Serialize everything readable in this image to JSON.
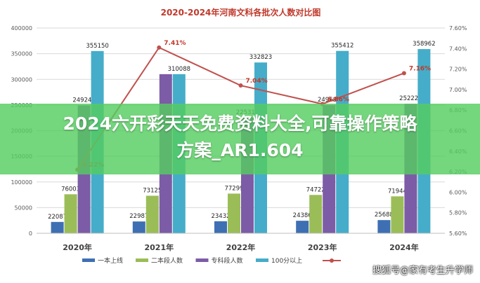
{
  "chart_data": {
    "type": "bar",
    "title": "2020-2024年河南文科各批次人数对比图",
    "categories": [
      "2020年",
      "2021年",
      "2022年",
      "2023年",
      "2024年"
    ],
    "series": [
      {
        "name": "一本上线",
        "values": [
          22087,
          22987,
          23432,
          24386,
          25688
        ],
        "color": "#3e6fb3"
      },
      {
        "name": "二本段人数",
        "values": [
          76003,
          73125,
          77299,
          74722,
          71944
        ],
        "color": "#9bbd58"
      },
      {
        "name": "专科段人数",
        "values": [
          249247,
          310088,
          225310,
          249688,
          252227
        ],
        "color": "#7c5ca6"
      },
      {
        "name": "100分以上",
        "values": [
          355150,
          310088,
          332823,
          355412,
          358962
        ],
        "color": "#45adc9"
      }
    ],
    "bar_labels": [
      [
        "22087",
        "22987",
        "23432",
        "24386",
        "25688"
      ],
      [
        "76003",
        "73125",
        "77299",
        "74722",
        "71944"
      ],
      [
        "249247",
        "",
        "225310",
        "249688",
        "252227"
      ],
      [
        "355150",
        "310088",
        "332823",
        "355412",
        "358962"
      ]
    ],
    "line_series": {
      "name": "",
      "values": [
        6.22,
        7.41,
        7.04,
        6.86,
        7.16
      ],
      "labels": [
        "6.22%",
        "7.41%",
        "7.04%",
        "6.86%",
        "7.16%"
      ],
      "color": "#c0504d"
    },
    "ylim": [
      0,
      400000
    ],
    "yticks": [
      "0",
      "50000",
      "100000",
      "150000",
      "200000",
      "250000",
      "300000",
      "350000",
      "400000"
    ],
    "y2lim": [
      5.6,
      7.6
    ],
    "y2ticks": [
      "5.60%",
      "5.80%",
      "6.00%",
      "6.20%",
      "6.40%",
      "6.60%",
      "6.80%",
      "7.00%",
      "7.20%",
      "7.40%",
      "7.60%"
    ],
    "grid": true,
    "legend_position": "bottom"
  },
  "overlay": {
    "headline_line1": "2024六开彩天天免费资料大全,可靠操作策略",
    "headline_line2": "方案_AR1.604",
    "watermark": "搜狐号@家有考生升学师"
  }
}
